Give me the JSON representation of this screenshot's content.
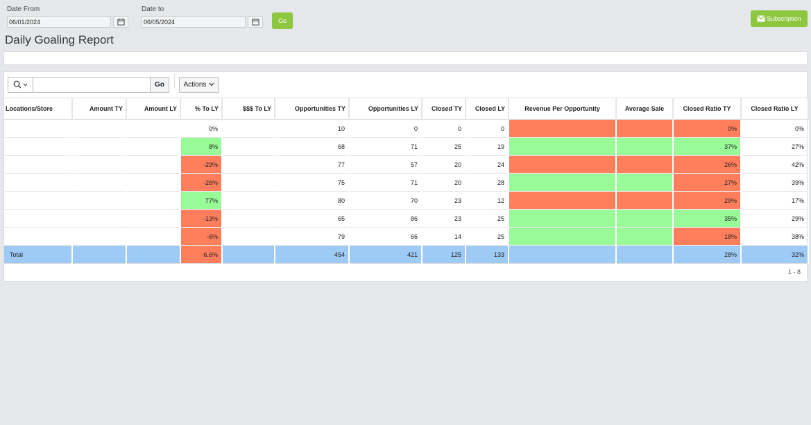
{
  "filters": {
    "date_from_label": "Date From",
    "date_from_value": "06/01/2024",
    "date_to_label": "Date to",
    "date_to_value": "06/05/2024",
    "go_label": "Go"
  },
  "subscription_label": "Subscription",
  "page_title": "Daily Goaling Report",
  "toolbar": {
    "search_value": "",
    "go_label": "Go",
    "actions_label": "Actions"
  },
  "columns": [
    "Locations/Store",
    "Amount TY",
    "Amount LY",
    "% To LY",
    "$$$ To LY",
    "Opportunities TY",
    "Opportunities LY",
    "Closed TY",
    "Closed LY",
    "Revenue Per Opportunity",
    "Average Sale",
    "Closed Ratio TY",
    "Closed Ratio LY"
  ],
  "rows": [
    {
      "location": "",
      "pct_to_ly": "0%",
      "opp_ty": "10",
      "opp_ly": "0",
      "closed_ty": "0",
      "closed_ly": "0",
      "ratio_ty": "0%",
      "ratio_ly": "0%",
      "pct_status": "none",
      "rev_status": "red",
      "avg_status": "red",
      "ratio_status": "red"
    },
    {
      "location": "",
      "pct_to_ly": "8%",
      "opp_ty": "68",
      "opp_ly": "71",
      "closed_ty": "25",
      "closed_ly": "19",
      "ratio_ty": "37%",
      "ratio_ly": "27%",
      "pct_status": "green",
      "rev_status": "green",
      "avg_status": "green",
      "ratio_status": "green"
    },
    {
      "location": "",
      "pct_to_ly": "-29%",
      "opp_ty": "77",
      "opp_ly": "57",
      "closed_ty": "20",
      "closed_ly": "24",
      "ratio_ty": "26%",
      "ratio_ly": "42%",
      "pct_status": "red",
      "rev_status": "red",
      "avg_status": "red",
      "ratio_status": "red"
    },
    {
      "location": "",
      "pct_to_ly": "-26%",
      "opp_ty": "75",
      "opp_ly": "71",
      "closed_ty": "20",
      "closed_ly": "28",
      "ratio_ty": "27%",
      "ratio_ly": "39%",
      "pct_status": "red",
      "rev_status": "green",
      "avg_status": "green",
      "ratio_status": "red"
    },
    {
      "location": "",
      "pct_to_ly": "77%",
      "opp_ty": "80",
      "opp_ly": "70",
      "closed_ty": "23",
      "closed_ly": "12",
      "ratio_ty": "29%",
      "ratio_ly": "17%",
      "pct_status": "green",
      "rev_status": "red",
      "avg_status": "red",
      "ratio_status": "red"
    },
    {
      "location": "",
      "pct_to_ly": "-13%",
      "opp_ty": "65",
      "opp_ly": "86",
      "closed_ty": "23",
      "closed_ly": "25",
      "ratio_ty": "35%",
      "ratio_ly": "29%",
      "pct_status": "red",
      "rev_status": "green",
      "avg_status": "green",
      "ratio_status": "green"
    },
    {
      "location": "",
      "pct_to_ly": "-6%",
      "opp_ty": "79",
      "opp_ly": "66",
      "closed_ty": "14",
      "closed_ly": "25",
      "ratio_ty": "18%",
      "ratio_ly": "38%",
      "pct_status": "red",
      "rev_status": "green",
      "avg_status": "green",
      "ratio_status": "red"
    }
  ],
  "total": {
    "location": "Total",
    "pct_to_ly": "-6.6%",
    "opp_ty": "454",
    "opp_ly": "421",
    "closed_ty": "125",
    "closed_ly": "133",
    "ratio_ty": "28%",
    "ratio_ly": "32%"
  },
  "pagination": "1 - 8",
  "colors": {
    "accent_green": "#8dc63f",
    "status_green": "#98fb98",
    "status_red": "#ff7f5c",
    "total_row": "#9ecbf6"
  },
  "icons": [
    "calendar-icon",
    "mail-icon",
    "search-icon",
    "chevron-down-icon"
  ]
}
